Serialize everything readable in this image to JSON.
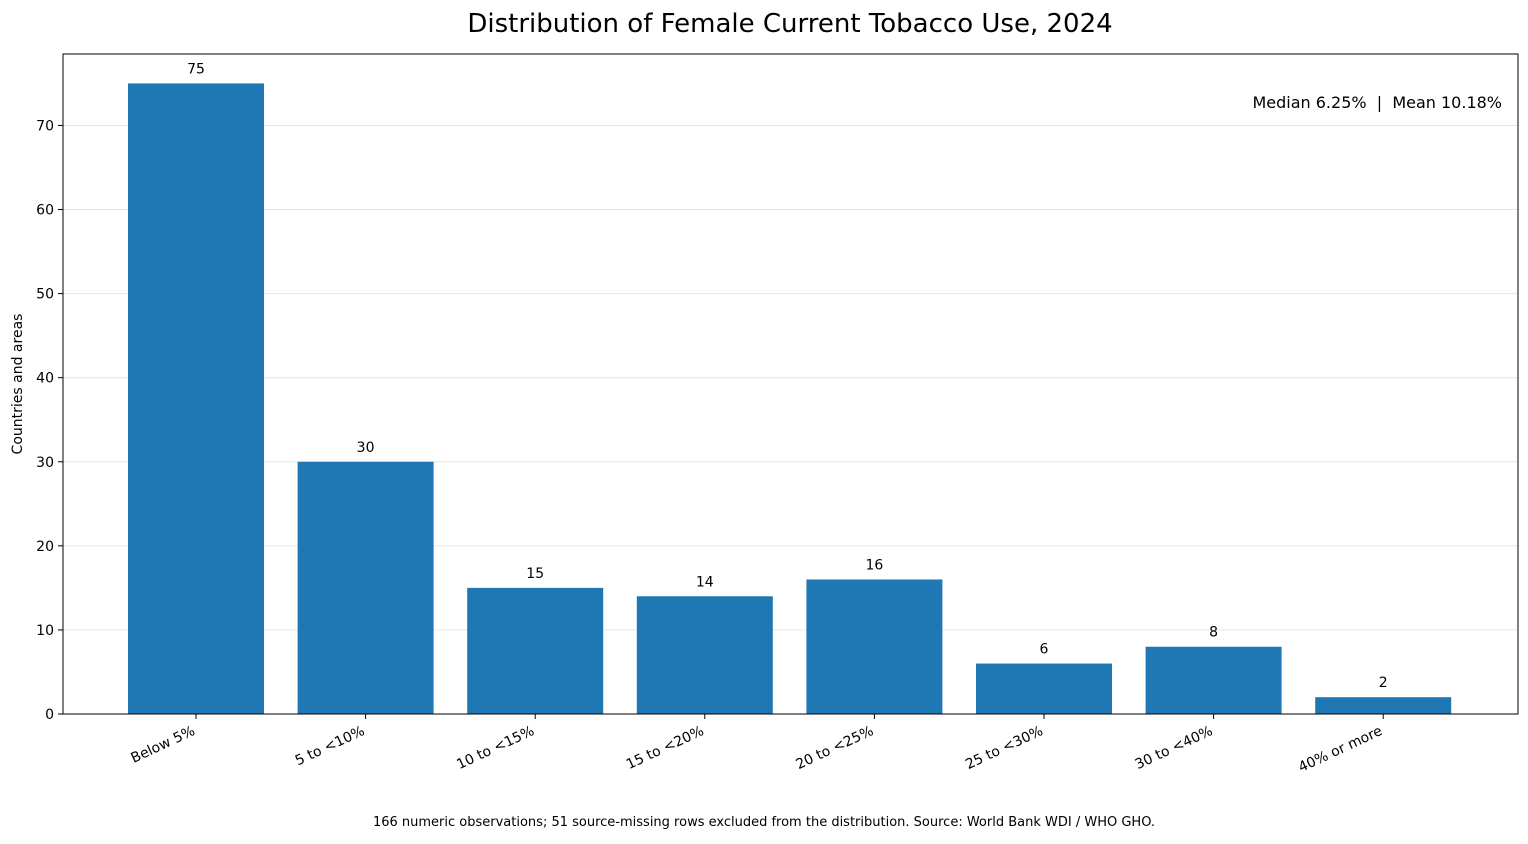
{
  "chart_data": {
    "type": "bar",
    "title": "Distribution of Female Current Tobacco Use, 2024",
    "xlabel": "",
    "ylabel": "Countries and areas",
    "categories": [
      "Below 5%",
      "5 to <10%",
      "10 to <15%",
      "15 to <20%",
      "20 to <25%",
      "25 to <30%",
      "30 to <40%",
      "40% or more"
    ],
    "values": [
      75,
      30,
      15,
      14,
      16,
      6,
      8,
      2
    ],
    "ylim": [
      0,
      78.5
    ],
    "yticks": [
      0,
      10,
      20,
      30,
      40,
      50,
      60,
      70
    ],
    "grid": "y",
    "bar_color": "#1f77b4",
    "annotation": "Median 6.25%  |  Mean 10.18%",
    "annotation_placement": "top-right",
    "footnote": "166 numeric observations; 51 source-missing rows excluded from the distribution. Source: World Bank WDI / WHO GHO."
  }
}
